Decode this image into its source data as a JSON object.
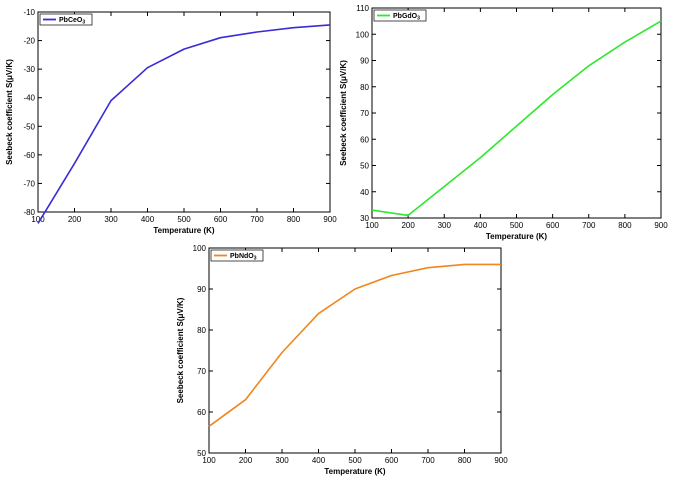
{
  "chart_data": [
    {
      "type": "line",
      "x": [
        100,
        200,
        300,
        400,
        500,
        600,
        700,
        800,
        900
      ],
      "series": [
        {
          "name": "PbCeO3",
          "color": "#3a2bd6",
          "values": [
            -84,
            -63,
            -41,
            -29.5,
            -23,
            -19,
            -17,
            -15.5,
            -14.5
          ]
        }
      ],
      "xlabel": "Temperature (K)",
      "ylabel": "Seebeck coefficient S(μV/K)",
      "xlim": [
        100,
        900
      ],
      "ylim": [
        -80,
        -10
      ],
      "xticks": [
        100,
        200,
        300,
        400,
        500,
        600,
        700,
        800,
        900
      ],
      "yticks": [
        -80,
        -70,
        -60,
        -50,
        -40,
        -30,
        -20,
        -10
      ],
      "legend_position": "top-left",
      "grid": false
    },
    {
      "type": "line",
      "x": [
        100,
        200,
        300,
        400,
        500,
        600,
        700,
        800,
        900
      ],
      "series": [
        {
          "name": "PbGdO3",
          "color": "#2ee82e",
          "values": [
            33,
            31,
            42,
            53,
            65,
            77,
            88,
            97,
            105
          ]
        }
      ],
      "xlabel": "Temperature (K)",
      "ylabel": "Seebeck coefficient S(μV/K)",
      "xlim": [
        100,
        900
      ],
      "ylim": [
        30,
        110
      ],
      "xticks": [
        100,
        200,
        300,
        400,
        500,
        600,
        700,
        800,
        900
      ],
      "yticks": [
        30,
        40,
        50,
        60,
        70,
        80,
        90,
        100,
        110
      ],
      "legend_position": "top-left",
      "grid": false
    },
    {
      "type": "line",
      "x": [
        100,
        200,
        300,
        400,
        500,
        600,
        700,
        800,
        900
      ],
      "series": [
        {
          "name": "PbNdO3",
          "color": "#f0861c",
          "values": [
            56.5,
            63,
            74.5,
            84,
            90,
            93.3,
            95.2,
            96,
            96
          ]
        }
      ],
      "xlabel": "Temperature (K)",
      "ylabel": "Seebeck coefficient S(μV/K)",
      "xlim": [
        100,
        900
      ],
      "ylim": [
        50,
        100
      ],
      "xticks": [
        100,
        200,
        300,
        400,
        500,
        600,
        700,
        800,
        900
      ],
      "yticks": [
        50,
        60,
        70,
        80,
        90,
        100
      ],
      "legend_position": "top-left",
      "grid": false
    }
  ]
}
